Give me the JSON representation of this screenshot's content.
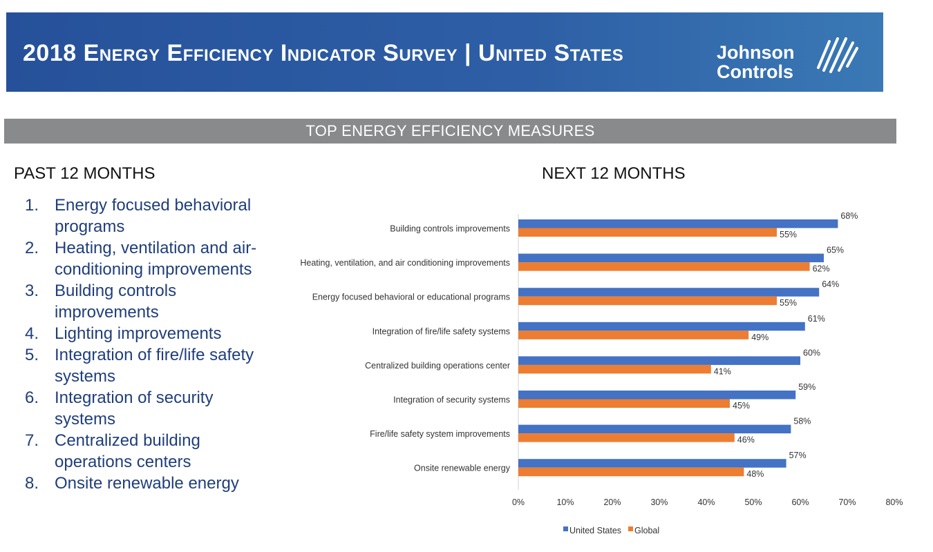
{
  "header": {
    "title": "2018 Energy Efficiency Indicator Survey | United States",
    "logo_line1": "Johnson",
    "logo_line2": "Controls",
    "logo_mark_icon": "johnson-controls-swirl-icon",
    "colors": {
      "banner": "#2e5fa6",
      "section_bar": "#898a8c",
      "list_text": "#1f3e7c"
    }
  },
  "section_title": "TOP ENERGY EFFICIENCY MEASURES",
  "past": {
    "heading": "PAST 12 MONTHS",
    "items": [
      {
        "num": "1.",
        "label": "Energy focused behavioral programs"
      },
      {
        "num": "2.",
        "label": "Heating, ventilation and air-conditioning improvements"
      },
      {
        "num": "3.",
        "label": "Building controls improvements"
      },
      {
        "num": "4.",
        "label": "Lighting improvements"
      },
      {
        "num": "5.",
        "label": "Integration of fire/life safety systems"
      },
      {
        "num": "6.",
        "label": "Integration of security systems"
      },
      {
        "num": "7.",
        "label": "Centralized building operations centers"
      },
      {
        "num": "8.",
        "label": "Onsite renewable energy"
      }
    ]
  },
  "next": {
    "heading": "NEXT 12 MONTHS"
  },
  "chart_data": {
    "type": "bar",
    "orientation": "horizontal",
    "title": "NEXT 12 MONTHS",
    "categories": [
      "Building controls improvements",
      "Heating, ventilation, and air conditioning improvements",
      "Energy focused behavioral or educational programs",
      "Integration of fire/life safety systems",
      "Centralized building operations center",
      "Integration of security systems",
      "Fire/life safety system improvements",
      "Onsite renewable energy"
    ],
    "series": [
      {
        "name": "United States",
        "color": "#4472c4",
        "values": [
          68,
          65,
          64,
          61,
          60,
          59,
          58,
          57
        ]
      },
      {
        "name": "Global",
        "color": "#ed7d31",
        "values": [
          55,
          62,
          55,
          49,
          41,
          45,
          46,
          48
        ]
      }
    ],
    "xlim": [
      0,
      80
    ],
    "xticks": [
      "0%",
      "10%",
      "20%",
      "30%",
      "40%",
      "50%",
      "60%",
      "70%",
      "80%"
    ],
    "value_suffix": "%",
    "legend": "bottom",
    "grid": false
  }
}
